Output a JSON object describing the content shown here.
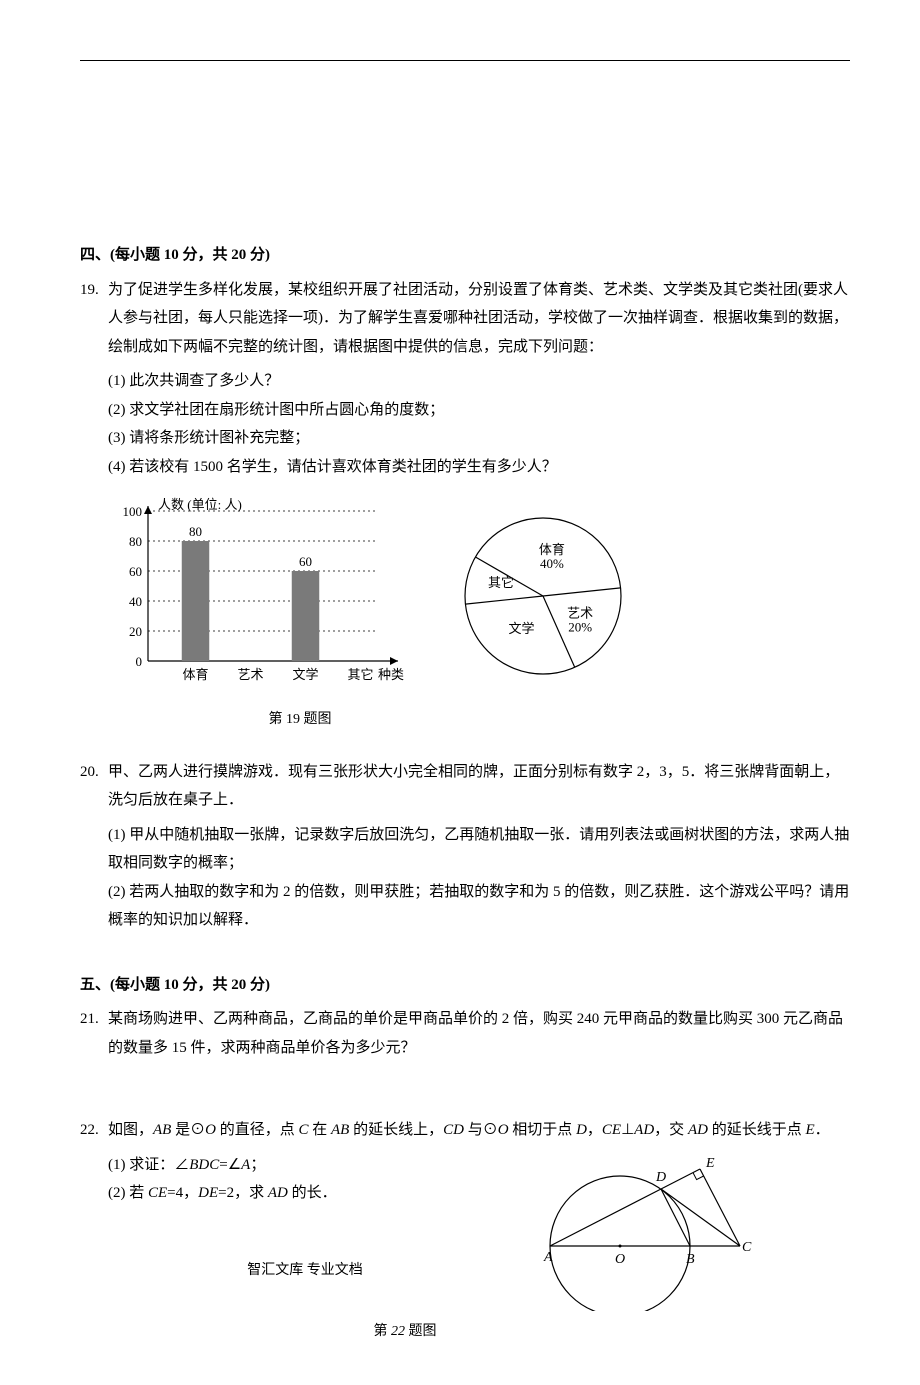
{
  "section4": {
    "title": "四、(每小题 10 分，共 20 分)",
    "q19": {
      "num": "19.",
      "intro": "为了促进学生多样化发展，某校组织开展了社团活动，分别设置了体育类、艺术类、文学类及其它类社团(要求人人参与社团，每人只能选择一项)．为了解学生喜爱哪种社团活动，学校做了一次抽样调查．根据收集到的数据，绘制成如下两幅不完整的统计图，请根据图中提供的信息，完成下列问题：",
      "p1": "(1) 此次共调查了多少人？",
      "p2": "(2) 求文学社团在扇形统计图中所占圆心角的度数；",
      "p3": "(3) 请将条形统计图补充完整；",
      "p4": "(4) 若该校有 1500 名学生，请估计喜欢体育类社团的学生有多少人？",
      "caption": "第 19 题图",
      "bar": {
        "ylabel": "人数 (单位: 人)",
        "xlabel": "种类",
        "ymax": 100,
        "yticks": [
          0,
          20,
          40,
          60,
          80,
          100
        ],
        "categories": [
          "体育",
          "艺术",
          "文学",
          "其它"
        ],
        "values": [
          80,
          null,
          60,
          null
        ],
        "value_labels": [
          "80",
          "",
          "60",
          ""
        ],
        "bar_color": "#7a7a7a",
        "grid_dash": "2,3",
        "axis_color": "#000"
      },
      "pie": {
        "slices": [
          {
            "label": "体育",
            "sub": "40%",
            "deg": 144,
            "start": 300
          },
          {
            "label": "艺术",
            "sub": "20%",
            "deg": 72,
            "start": 84
          },
          {
            "label": "文学",
            "sub": "",
            "deg": 108,
            "start": 156
          },
          {
            "label": "其它",
            "sub": "",
            "deg": 36,
            "start": 264
          }
        ],
        "stroke": "#000"
      }
    },
    "q20": {
      "num": "20.",
      "intro": "甲、乙两人进行摸牌游戏．现有三张形状大小完全相同的牌，正面分别标有数字 2，3，5．将三张牌背面朝上，洗匀后放在桌子上．",
      "p1": "(1) 甲从中随机抽取一张牌，记录数字后放回洗匀，乙再随机抽取一张．请用列表法或画树状图的方法，求两人抽取相同数字的概率；",
      "p2": "(2) 若两人抽取的数字和为 2 的倍数，则甲获胜；若抽取的数字和为 5 的倍数，则乙获胜．这个游戏公平吗？请用概率的知识加以解释．"
    }
  },
  "section5": {
    "title": "五、(每小题 10 分，共 20 分)",
    "q21": {
      "num": "21.",
      "text": "某商场购进甲、乙两种商品，乙商品的单价是甲商品单价的 2 倍，购买 240 元甲商品的数量比购买 300 元乙商品的数量多 15 件，求两种商品单价各为多少元？"
    },
    "q22": {
      "num": "22.",
      "intro_pre": "如图，",
      "intro_html": "AB 是⊙O 的直径，点 C 在 AB 的延长线上，CD 与⊙O 相切于点 D，CE⊥AD，交 AD 的延长线于点 E．",
      "p1_pre": "(1) 求证：∠",
      "p1_mid": "BDC",
      "p1_mid2": "=∠",
      "p1_end": "A",
      "p1_suf": "；",
      "p2_pre": "(2) 若 ",
      "p2_a": "CE",
      "p2_b": "=4，",
      "p2_c": "DE",
      "p2_d": "=2，求 ",
      "p2_e": "AD",
      "p2_f": " 的长．",
      "caption": "第 22 题图",
      "labels": {
        "A": "A",
        "O": "O",
        "B": "B",
        "C": "C",
        "D": "D",
        "E": "E"
      }
    }
  },
  "footer": "智汇文库 专业文档"
}
